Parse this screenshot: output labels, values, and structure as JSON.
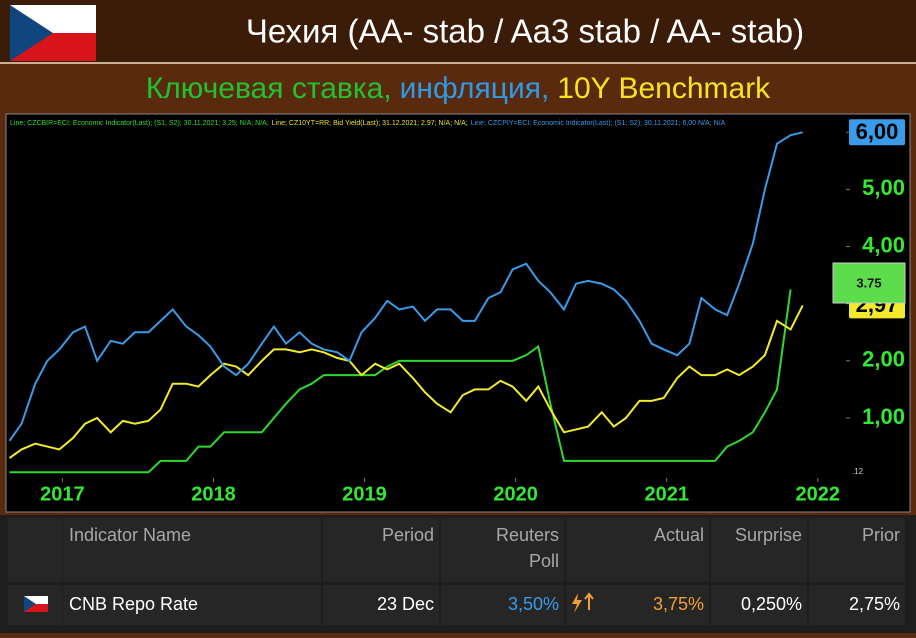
{
  "header": {
    "title": "Чехия (AA- stab / Aa3 stab / AA- stab)",
    "subtitle": [
      {
        "text": "Ключевая ставка,",
        "color": "#22c22e"
      },
      {
        "text": "инфляция,",
        "color": "#2f9be6"
      },
      {
        "text": "10Y Benchmark",
        "color": "#f5e51f"
      }
    ]
  },
  "chart_data": {
    "type": "line",
    "legend": [
      {
        "text": "Line; CZCBIR=ECI; Economic Indicator(Last); (S1; S2); 30.11.2021; 3,25; N/A; N/A;",
        "color": "#33dd33"
      },
      {
        "text": "Line; CZ10YT=RR; Bid Yield(Last); 31.12.2021; 2,97; N/A; N/A;",
        "color": "#e8e020"
      },
      {
        "text": "Line; CZCPIY=ECI; Economic Indicator(Last); (S1; S2); 30.11.2021; 6,00 N/A; N/A",
        "color": "#3a9be8"
      }
    ],
    "x": [
      2016.65,
      2016.73,
      2016.82,
      2016.9,
      2016.98,
      2017.07,
      2017.15,
      2017.23,
      2017.32,
      2017.4,
      2017.48,
      2017.57,
      2017.65,
      2017.73,
      2017.82,
      2017.9,
      2017.98,
      2018.07,
      2018.15,
      2018.23,
      2018.32,
      2018.4,
      2018.48,
      2018.57,
      2018.65,
      2018.73,
      2018.82,
      2018.9,
      2018.98,
      2019.07,
      2019.15,
      2019.23,
      2019.32,
      2019.4,
      2019.48,
      2019.57,
      2019.65,
      2019.73,
      2019.82,
      2019.9,
      2019.98,
      2020.07,
      2020.15,
      2020.23,
      2020.32,
      2020.4,
      2020.48,
      2020.57,
      2020.65,
      2020.73,
      2020.82,
      2020.9,
      2020.98,
      2021.07,
      2021.15,
      2021.23,
      2021.32,
      2021.4,
      2021.48,
      2021.57,
      2021.65,
      2021.73,
      2021.82,
      2021.9
    ],
    "series": [
      {
        "name": "CZCBIR=ECI",
        "color": "#2ed82e",
        "values": [
          0.05,
          0.05,
          0.05,
          0.05,
          0.05,
          0.05,
          0.05,
          0.05,
          0.05,
          0.05,
          0.05,
          0.05,
          0.25,
          0.25,
          0.25,
          0.5,
          0.5,
          0.75,
          0.75,
          0.75,
          0.75,
          1.0,
          1.25,
          1.5,
          1.6,
          1.75,
          1.75,
          1.75,
          1.75,
          1.75,
          1.9,
          2.0,
          2.0,
          2.0,
          2.0,
          2.0,
          2.0,
          2.0,
          2.0,
          2.0,
          2.0,
          2.1,
          2.25,
          1.25,
          0.25,
          0.25,
          0.25,
          0.25,
          0.25,
          0.25,
          0.25,
          0.25,
          0.25,
          0.25,
          0.25,
          0.25,
          0.25,
          0.5,
          0.6,
          0.75,
          1.1,
          1.5,
          3.25,
          null
        ]
      },
      {
        "name": "CZ10YT=RR",
        "color": "#f2ea2a",
        "end_label": "2,97",
        "values": [
          0.3,
          0.45,
          0.55,
          0.5,
          0.45,
          0.65,
          0.9,
          1.0,
          0.75,
          0.95,
          0.9,
          0.95,
          1.15,
          1.6,
          1.6,
          1.55,
          1.75,
          1.95,
          1.9,
          1.75,
          2.0,
          2.2,
          2.2,
          2.15,
          2.2,
          2.15,
          2.05,
          2.0,
          1.75,
          1.95,
          1.85,
          1.95,
          1.7,
          1.45,
          1.25,
          1.1,
          1.4,
          1.5,
          1.5,
          1.65,
          1.55,
          1.3,
          1.55,
          1.15,
          0.75,
          0.8,
          0.85,
          1.1,
          0.85,
          1.0,
          1.3,
          1.3,
          1.35,
          1.7,
          1.9,
          1.75,
          1.75,
          1.85,
          1.75,
          1.9,
          2.1,
          2.7,
          2.55,
          2.97
        ]
      },
      {
        "name": "CZCPIY=ECI",
        "color": "#3a9be8",
        "end_label": "6,00",
        "values": [
          0.6,
          0.9,
          1.6,
          2.0,
          2.2,
          2.5,
          2.6,
          2.0,
          2.35,
          2.3,
          2.5,
          2.5,
          2.7,
          2.9,
          2.6,
          2.45,
          2.25,
          1.9,
          1.75,
          1.95,
          2.3,
          2.6,
          2.3,
          2.5,
          2.3,
          2.2,
          2.15,
          2.0,
          2.5,
          2.75,
          3.05,
          2.9,
          2.95,
          2.7,
          2.9,
          2.9,
          2.7,
          2.7,
          3.1,
          3.2,
          3.6,
          3.7,
          3.4,
          3.2,
          2.9,
          3.35,
          3.4,
          3.35,
          3.25,
          3.05,
          2.7,
          2.3,
          2.2,
          2.1,
          2.3,
          3.1,
          2.9,
          2.8,
          3.35,
          4.05,
          5.0,
          5.8,
          5.95,
          6.0
        ]
      }
    ],
    "callout": "3.75",
    "corner_label": ".12",
    "xlim": [
      2016.64,
      2022.2
    ],
    "xticks": [
      2017,
      2018,
      2019,
      2020,
      2021,
      2022
    ],
    "ylim": [
      -0.05,
      6.25
    ],
    "yticks": [
      {
        "value": 1,
        "label": "1,00"
      },
      {
        "value": 2,
        "label": "2,00"
      },
      {
        "value": 3,
        "label": "3,00"
      },
      {
        "value": 4,
        "label": "4,00"
      },
      {
        "value": 5,
        "label": "5,00"
      },
      {
        "value": 6,
        "label": "6,00"
      }
    ]
  },
  "table": {
    "columns": [
      "Indicator Name",
      "Period",
      "Reuters Poll",
      "Actual",
      "Surprise",
      "Prior"
    ],
    "rows": [
      [
        "CNB Repo Rate",
        "23 Dec",
        "3,50%",
        "3,75%",
        "0,250%",
        "2,75%"
      ]
    ]
  }
}
